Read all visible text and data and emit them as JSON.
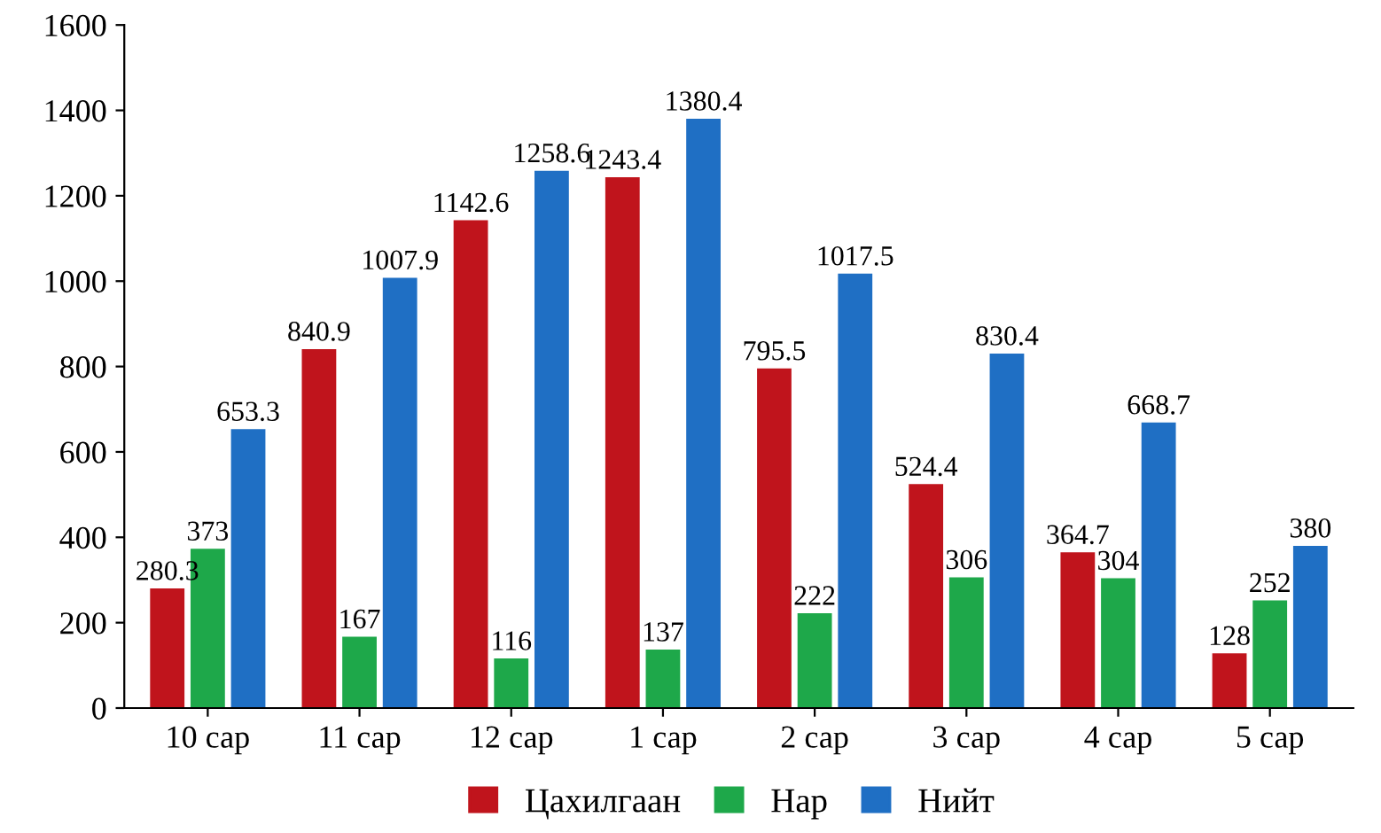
{
  "chart_data": {
    "type": "bar",
    "categories": [
      "10 сар",
      "11 сар",
      "12 сар",
      "1 сар",
      "2 сар",
      "3 сар",
      "4 сар",
      "5 сар"
    ],
    "series": [
      {
        "name": "Цахилгаан",
        "color": "#c0141c",
        "values": [
          280.3,
          840.9,
          1142.6,
          1243.4,
          795.5,
          524.4,
          364.7,
          128
        ]
      },
      {
        "name": "Нар",
        "color": "#1ea84a",
        "values": [
          373,
          167,
          116,
          137,
          222,
          306,
          304,
          252
        ]
      },
      {
        "name": "Нийт",
        "color": "#1f6fc4",
        "values": [
          653.3,
          1007.9,
          1258.6,
          1380.4,
          1017.5,
          830.4,
          668.7,
          380
        ]
      }
    ],
    "ylim": [
      0,
      1600
    ],
    "yticks": [
      0,
      200,
      400,
      600,
      800,
      1000,
      1200,
      1400,
      1600
    ],
    "grid": false,
    "legend": "bottom",
    "data_labels": true
  }
}
